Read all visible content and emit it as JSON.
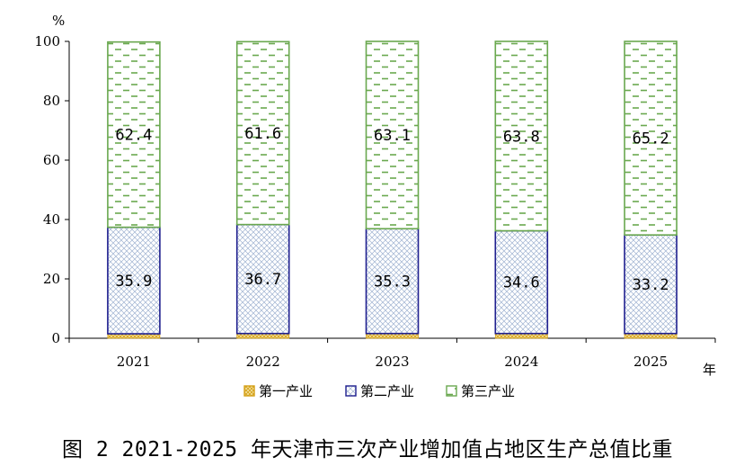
{
  "chart_data": {
    "type": "bar",
    "stacked": true,
    "categories": [
      "2021",
      "2022",
      "2023",
      "2024",
      "2025"
    ],
    "series": [
      {
        "name": "第一产业",
        "values": [
          1.5,
          1.6,
          1.6,
          1.6,
          1.6
        ],
        "show_labels": false,
        "color": "#d4a017"
      },
      {
        "name": "第二产业",
        "values": [
          35.9,
          36.7,
          35.3,
          34.6,
          33.2
        ],
        "show_labels": true,
        "color": "#1f1f8f"
      },
      {
        "name": "第三产业",
        "values": [
          62.4,
          61.6,
          63.1,
          63.8,
          65.2
        ],
        "show_labels": true,
        "color": "#6aa84f"
      }
    ],
    "y_unit": "%",
    "x_unit": "年",
    "ylim": [
      0,
      100
    ],
    "yticks": [
      0,
      20,
      40,
      60,
      80,
      100
    ],
    "grid": false,
    "legend_position": "bottom"
  },
  "caption": "图 2 2021-2025 年天津市三次产业增加值占地区生产总值比重"
}
